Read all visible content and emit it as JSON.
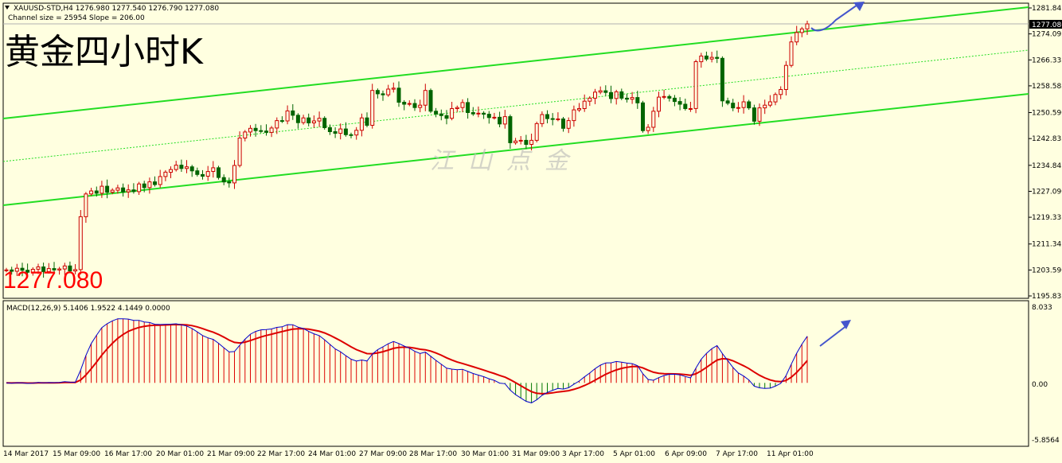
{
  "header": {
    "symbol_line": "XAUUSD-STD,H4  1276.980 1277.540 1276.790 1277.080",
    "channel_line": "Channel size = 25954 Slope = 206.00"
  },
  "overlay": {
    "title": "黄金四小时K",
    "current_price": "1277.080",
    "watermark": "江山点金"
  },
  "price_axis": {
    "ticks": [
      "1281.845",
      "1274.095",
      "1266.335",
      "1258.585",
      "1250.590",
      "1242.835",
      "1234.845",
      "1227.090",
      "1219.335",
      "1211.345",
      "1203.590",
      "1195.835"
    ],
    "current_label": "1277.080"
  },
  "macd_panel": {
    "label": "MACD(12,26,9) 5.1406 1.9522 4.1449 0.0000",
    "ticks": [
      "8.033",
      "0.00",
      "-5.8564"
    ]
  },
  "time_axis": {
    "labels": [
      "14 Mar 2017",
      "15 Mar 09:00",
      "16 Mar 17:00",
      "20 Mar 01:00",
      "21 Mar 09:00",
      "22 Mar 17:00",
      "24 Mar 01:00",
      "27 Mar 09:00",
      "28 Mar 17:00",
      "30 Mar 01:00",
      "31 Mar 09:00",
      "3 Apr 17:00",
      "5 Apr 01:00",
      "6 Apr 09:00",
      "7 Apr 17:00",
      "11 Apr 01:00"
    ]
  },
  "colors": {
    "background": "#ffffe0",
    "bull": "#cc0000",
    "bear": "#006400",
    "channel": "#22dd22",
    "macd_line": "#0000cc",
    "signal_line": "#dd0000",
    "hist_pos": "#dd0000",
    "hist_neg": "#007700",
    "arrow": "#4455cc"
  },
  "chart_data": {
    "type": "candlestick",
    "symbol": "XAUUSD-STD",
    "timeframe": "H4",
    "last": {
      "open": 1276.98,
      "high": 1277.54,
      "low": 1276.79,
      "close": 1277.08
    },
    "ylim": [
      1195.835,
      1281.845
    ],
    "channel": {
      "size": 25954,
      "slope": 206.0
    },
    "closes": [
      1203.6,
      1203.2,
      1204.1,
      1203.5,
      1202.9,
      1203.8,
      1204.5,
      1203.1,
      1204.0,
      1203.6,
      1203.9,
      1204.8,
      1203.3,
      1203.7,
      1219.5,
      1226.3,
      1227.2,
      1226.5,
      1228.6,
      1226.8,
      1227.4,
      1228.1,
      1226.9,
      1227.5,
      1227.0,
      1229.3,
      1228.2,
      1229.9,
      1229.1,
      1231.5,
      1232.8,
      1233.6,
      1234.9,
      1233.9,
      1234.4,
      1233.2,
      1232.1,
      1231.6,
      1233.0,
      1234.1,
      1231.2,
      1229.9,
      1229.6,
      1234.8,
      1243.0,
      1244.8,
      1245.9,
      1245.2,
      1245.1,
      1244.7,
      1246.0,
      1248.2,
      1248.1,
      1251.1,
      1249.8,
      1247.6,
      1249.0,
      1247.5,
      1248.1,
      1248.9,
      1246.1,
      1244.9,
      1244.4,
      1245.7,
      1244.0,
      1243.9,
      1245.3,
      1249.0,
      1246.8,
      1257.2,
      1256.2,
      1255.9,
      1257.6,
      1257.9,
      1253.7,
      1253.1,
      1253.3,
      1252.1,
      1252.8,
      1257.2,
      1251.0,
      1250.2,
      1249.7,
      1248.9,
      1251.8,
      1252.1,
      1253.6,
      1250.6,
      1250.2,
      1250.4,
      1250.1,
      1249.1,
      1249.2,
      1247.2,
      1249.4,
      1241.6,
      1242.1,
      1242.3,
      1241.1,
      1242.3,
      1247.3,
      1250.0,
      1248.8,
      1248.6,
      1248.7,
      1245.9,
      1248.2,
      1251.4,
      1251.8,
      1254.0,
      1254.9,
      1256.7,
      1257.1,
      1256.6,
      1254.8,
      1256.8,
      1254.9,
      1254.6,
      1255.1,
      1253.5,
      1245.2,
      1246.2,
      1251.0,
      1255.2,
      1255.4,
      1254.9,
      1253.9,
      1253.1,
      1251.8,
      1251.8,
      1265.8,
      1267.5,
      1266.6,
      1267.1,
      1266.8,
      1254.1,
      1253.4,
      1252.0,
      1252.1,
      1253.8,
      1252.0,
      1248.0,
      1252.0,
      1252.8,
      1253.8,
      1256.0,
      1257.5,
      1264.7,
      1271.7,
      1274.5,
      1275.6,
      1277.1
    ],
    "opens": [
      1203.5,
      1203.6,
      1203.2,
      1204.1,
      1203.5,
      1202.9,
      1203.8,
      1204.5,
      1203.1,
      1204.0,
      1203.6,
      1203.9,
      1204.8,
      1203.3,
      1203.7,
      1219.5,
      1226.3,
      1227.2,
      1226.5,
      1228.6,
      1226.8,
      1227.4,
      1228.1,
      1226.9,
      1227.5,
      1227.0,
      1229.3,
      1228.2,
      1229.9,
      1229.1,
      1231.5,
      1232.8,
      1233.6,
      1234.9,
      1233.9,
      1234.4,
      1233.2,
      1232.1,
      1231.6,
      1233.0,
      1234.1,
      1231.2,
      1229.9,
      1229.6,
      1234.8,
      1243.0,
      1244.8,
      1245.9,
      1245.2,
      1245.1,
      1244.7,
      1246.0,
      1248.2,
      1248.1,
      1251.1,
      1249.8,
      1247.6,
      1249.0,
      1247.5,
      1248.1,
      1248.9,
      1246.1,
      1244.9,
      1244.4,
      1245.7,
      1244.0,
      1243.9,
      1245.3,
      1249.0,
      1246.8,
      1257.2,
      1256.2,
      1255.9,
      1257.6,
      1257.9,
      1253.7,
      1253.1,
      1253.3,
      1252.1,
      1252.8,
      1257.2,
      1251.0,
      1250.2,
      1249.7,
      1248.9,
      1251.8,
      1252.1,
      1253.6,
      1250.6,
      1250.2,
      1250.4,
      1250.1,
      1249.1,
      1249.2,
      1247.2,
      1249.4,
      1241.6,
      1242.1,
      1242.3,
      1241.1,
      1242.3,
      1247.3,
      1250.0,
      1248.8,
      1248.6,
      1248.7,
      1245.9,
      1248.2,
      1251.4,
      1251.8,
      1254.0,
      1254.9,
      1256.7,
      1257.1,
      1256.6,
      1254.8,
      1256.8,
      1254.9,
      1254.6,
      1255.1,
      1253.5,
      1245.2,
      1246.2,
      1251.0,
      1255.2,
      1255.4,
      1254.9,
      1253.9,
      1253.1,
      1251.8,
      1251.8,
      1265.8,
      1267.5,
      1266.6,
      1267.1,
      1266.8,
      1254.1,
      1253.4,
      1252.0,
      1252.1,
      1253.8,
      1252.0,
      1248.0,
      1252.0,
      1252.8,
      1253.8,
      1256.0,
      1257.5,
      1264.7,
      1271.7,
      1274.5,
      1275.6,
      1276.98
    ]
  }
}
